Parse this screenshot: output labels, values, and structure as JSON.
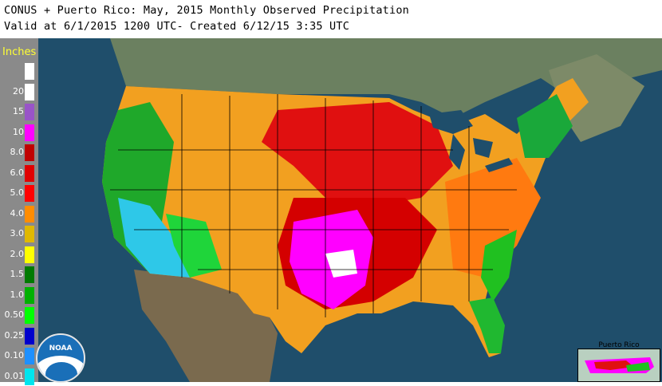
{
  "header": {
    "title_line1": "CONUS + Puerto Rico: May, 2015 Monthly Observed Precipitation",
    "title_line2": "Valid at 6/1/2015 1200 UTC- Created 6/12/15 3:35 UTC"
  },
  "legend": {
    "title": "Inches",
    "items": [
      {
        "label": "",
        "color": "#ffffff"
      },
      {
        "label": "20",
        "color": "#ffffff"
      },
      {
        "label": "15",
        "color": "#9954c8"
      },
      {
        "label": "10",
        "color": "#ff00ff"
      },
      {
        "label": "8.0",
        "color": "#c00000"
      },
      {
        "label": "6.0",
        "color": "#e00000"
      },
      {
        "label": "5.0",
        "color": "#ff0000"
      },
      {
        "label": "4.0",
        "color": "#ff8c00"
      },
      {
        "label": "3.0",
        "color": "#e0b800"
      },
      {
        "label": "2.0",
        "color": "#ffff00"
      },
      {
        "label": "1.5",
        "color": "#007a00"
      },
      {
        "label": "1.0",
        "color": "#00b000"
      },
      {
        "label": "0.50",
        "color": "#00ff00"
      },
      {
        "label": "0.25",
        "color": "#0000cc"
      },
      {
        "label": "0.10",
        "color": "#1e90ff"
      },
      {
        "label": "0.01",
        "color": "#00e5ee"
      }
    ]
  },
  "inset": {
    "label": "Puerto Rico"
  },
  "logo": {
    "text": "NOAA"
  },
  "colors": {
    "ocean": "#1f4e6b",
    "land_outside": "#6b7d5a",
    "state_border": "#000000"
  }
}
